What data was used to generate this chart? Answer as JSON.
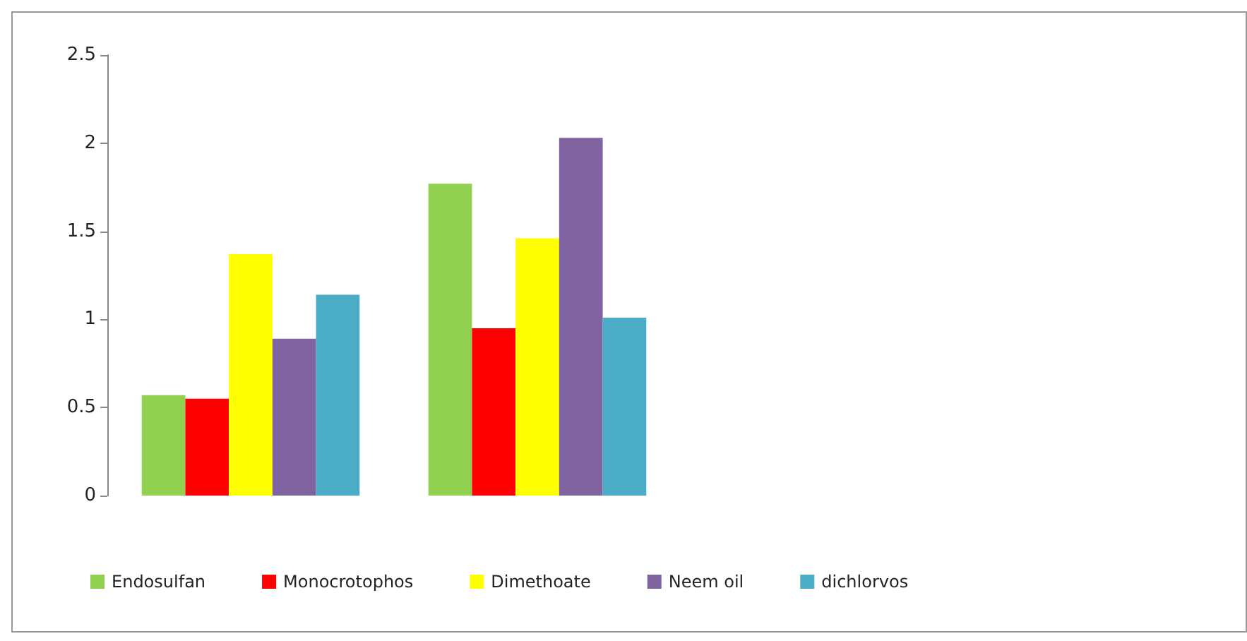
{
  "chart_data": {
    "type": "bar",
    "categories": [
      null,
      null
    ],
    "series": [
      {
        "name": "Endosulfan",
        "color": "#92d050",
        "values": [
          0.57,
          1.77
        ]
      },
      {
        "name": "Monocrotophos",
        "color": "#ff0000",
        "values": [
          0.55,
          0.95
        ]
      },
      {
        "name": "Dimethoate",
        "color": "#ffff00",
        "values": [
          1.37,
          1.46
        ]
      },
      {
        "name": "Neem oil",
        "color": "#8064a2",
        "values": [
          0.89,
          2.03
        ]
      },
      {
        "name": "dichlorvos",
        "color": "#4bacc6",
        "values": [
          1.14,
          1.01
        ]
      }
    ],
    "ylim": [
      0,
      2.5
    ],
    "yticks": [
      0,
      0.5,
      1,
      1.5,
      2,
      2.5
    ],
    "grid": false,
    "legend": "bottom"
  }
}
